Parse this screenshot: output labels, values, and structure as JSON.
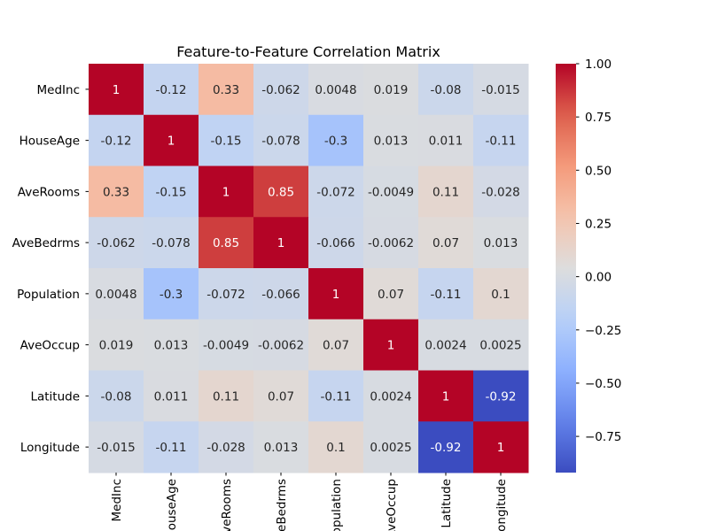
{
  "chart_data": {
    "type": "heatmap",
    "title": "Feature-to-Feature Correlation Matrix",
    "xlabel": "",
    "ylabel": "",
    "colormap": "coolwarm",
    "vmin": -0.92,
    "vmax": 1.0,
    "row_labels": [
      "MedInc",
      "HouseAge",
      "AveRooms",
      "AveBedrms",
      "Population",
      "AveOccup",
      "Latitude",
      "Longitude"
    ],
    "col_labels": [
      "MedInc",
      "HouseAge",
      "AveRooms",
      "AveBedrms",
      "Population",
      "AveOccup",
      "Latitude",
      "Longitude"
    ],
    "values": [
      [
        "1",
        "-0.12",
        "0.33",
        "-0.062",
        "0.0048",
        "0.019",
        "-0.08",
        "-0.015"
      ],
      [
        "-0.12",
        "1",
        "-0.15",
        "-0.078",
        "-0.3",
        "0.013",
        "0.011",
        "-0.11"
      ],
      [
        "0.33",
        "-0.15",
        "1",
        "0.85",
        "-0.072",
        "-0.0049",
        "0.11",
        "-0.028"
      ],
      [
        "-0.062",
        "-0.078",
        "0.85",
        "1",
        "-0.066",
        "-0.0062",
        "0.07",
        "0.013"
      ],
      [
        "0.0048",
        "-0.3",
        "-0.072",
        "-0.066",
        "1",
        "0.07",
        "-0.11",
        "0.1"
      ],
      [
        "0.019",
        "0.013",
        "-0.0049",
        "-0.0062",
        "0.07",
        "1",
        "0.0024",
        "0.0025"
      ],
      [
        "-0.08",
        "0.011",
        "0.11",
        "0.07",
        "-0.11",
        "0.0024",
        "1",
        "-0.92"
      ],
      [
        "-0.015",
        "-0.11",
        "-0.028",
        "0.013",
        "0.1",
        "0.0025",
        "-0.92",
        "1"
      ]
    ],
    "colorbar_ticks": [
      "1.00",
      "0.75",
      "0.50",
      "0.25",
      "0.00",
      "−0.25",
      "−0.50",
      "−0.75"
    ],
    "colorbar_tick_values": [
      1.0,
      0.75,
      0.5,
      0.25,
      0.0,
      -0.25,
      -0.5,
      -0.75
    ]
  }
}
